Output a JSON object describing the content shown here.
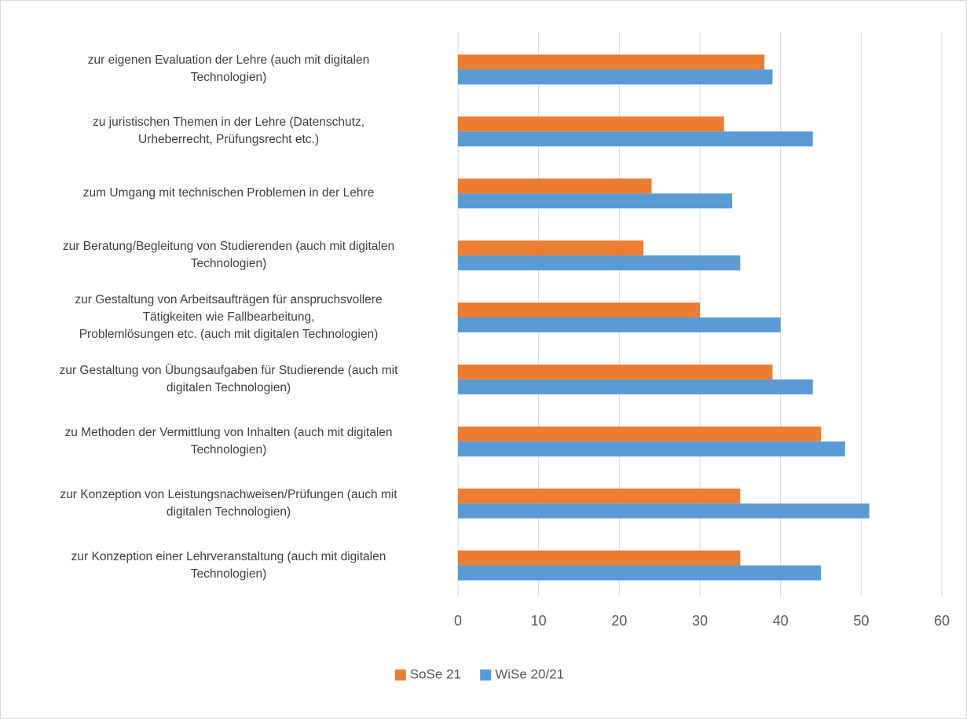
{
  "chart_data": {
    "type": "bar",
    "orientation": "horizontal",
    "categories": [
      "zur eigenen Evaluation der Lehre (auch mit digitalen\nTechnologien)",
      "zu juristischen Themen in der Lehre (Datenschutz,\nUrheberrecht, Prüfungsrecht etc.)",
      "zum Umgang mit technischen Problemen in der Lehre",
      "zur Beratung/Begleitung von Studierenden (auch mit digitalen\nTechnologien)",
      "zur Gestaltung von Arbeitsaufträgen für anspruchsvollere\nTätigkeiten wie Fallbearbeitung,\nProblemlösungen etc. (auch mit digitalen Technologien)",
      "zur Gestaltung von Übungsaufgaben für Studierende (auch mit\ndigitalen Technologien)",
      "zu Methoden der Vermittlung von Inhalten (auch mit digitalen\nTechnologien)",
      "zur Konzeption von Leistungsnachweisen/Prüfungen (auch mit\ndigitalen Technologien)",
      "zur Konzeption einer Lehrveranstaltung (auch mit digitalen\nTechnologien)"
    ],
    "series": [
      {
        "name": "SoSe 21",
        "color": "#ed7d31",
        "values": [
          38,
          33,
          24,
          23,
          30,
          39,
          45,
          35,
          35
        ]
      },
      {
        "name": "WiSe 20/21",
        "color": "#5b9bd5",
        "values": [
          39,
          44,
          34,
          35,
          40,
          44,
          48,
          51,
          45
        ]
      }
    ],
    "xlim": [
      0,
      60
    ],
    "xticks": [
      0,
      10,
      20,
      30,
      40,
      50,
      60
    ],
    "grid": true,
    "legend": "bottom"
  }
}
